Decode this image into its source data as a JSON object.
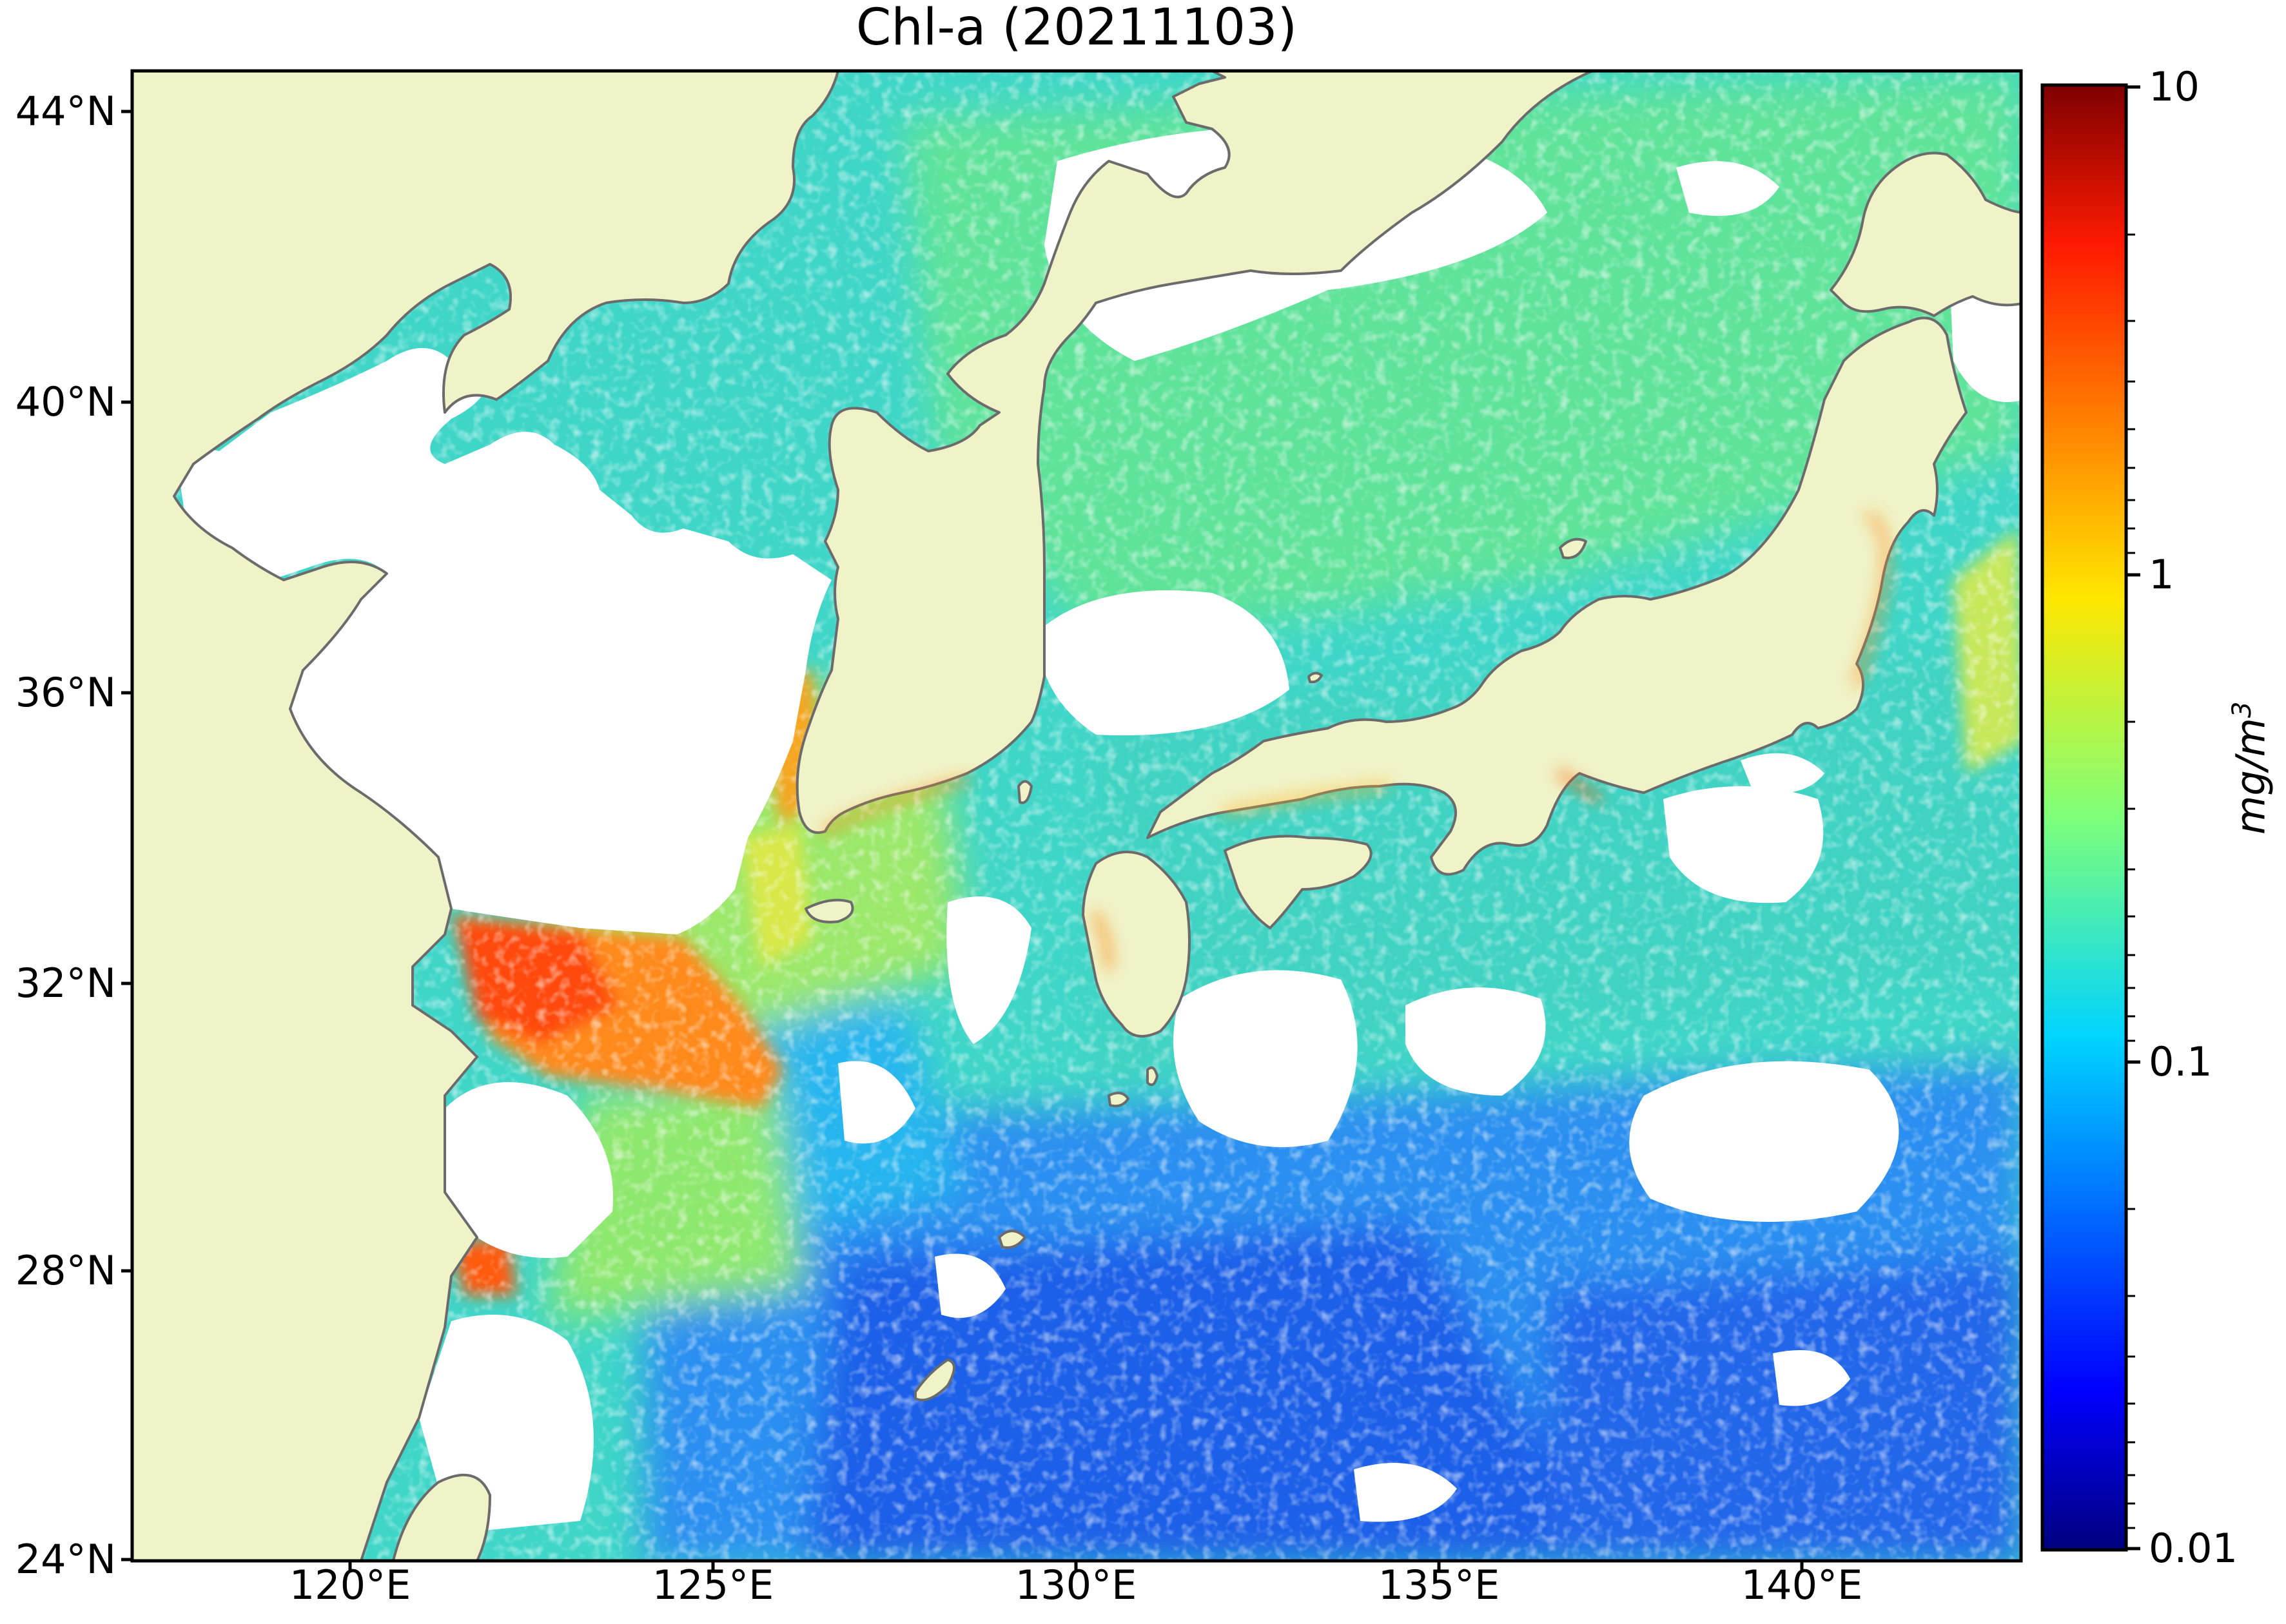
{
  "map": {
    "title": "Chl-a (20211103)",
    "variable": "Chl-a",
    "date": "20211103",
    "lon_range": [
      117,
      143
    ],
    "lat_range": [
      24,
      44.5
    ],
    "lat_ticks": [
      "44°N",
      "40°N",
      "36°N",
      "32°N",
      "28°N",
      "24°N"
    ],
    "lon_ticks": [
      "120°E",
      "125°E",
      "130°E",
      "135°E",
      "140°E"
    ],
    "land_color": "#f0f3c8",
    "coast_color": "#6b6b6b",
    "nodata_color": "#ffffff",
    "colormap": "jet",
    "scale": "log"
  },
  "colorbar": {
    "labels": [
      "10",
      "1",
      "0.1",
      "0.01"
    ],
    "unit_base": "mg/m",
    "unit_exp": "3",
    "range": [
      0.01,
      10
    ]
  }
}
